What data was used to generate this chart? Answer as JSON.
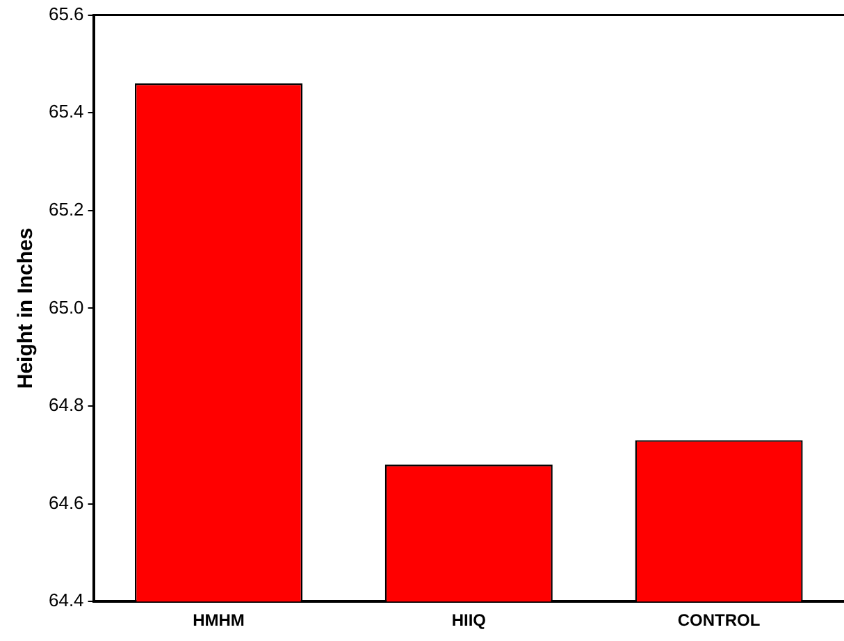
{
  "chart_data": {
    "type": "bar",
    "ylabel": "Height in Inches",
    "categories": [
      "HMHM",
      "HIIQ",
      "CONTROL"
    ],
    "values": [
      65.46,
      64.68,
      64.73
    ],
    "color": "#ff0000",
    "ylim": [
      64.4,
      65.6
    ],
    "yticks": [
      {
        "value": 64.4,
        "label": "64.4"
      },
      {
        "value": 64.6,
        "label": "64.6"
      },
      {
        "value": 64.8,
        "label": "64.8"
      },
      {
        "value": 65.0,
        "label": "65.0"
      },
      {
        "value": 65.2,
        "label": "65.2"
      },
      {
        "value": 65.4,
        "label": "65.4"
      },
      {
        "value": 65.6,
        "label": "65.6"
      }
    ],
    "grid": false,
    "legend": false
  }
}
